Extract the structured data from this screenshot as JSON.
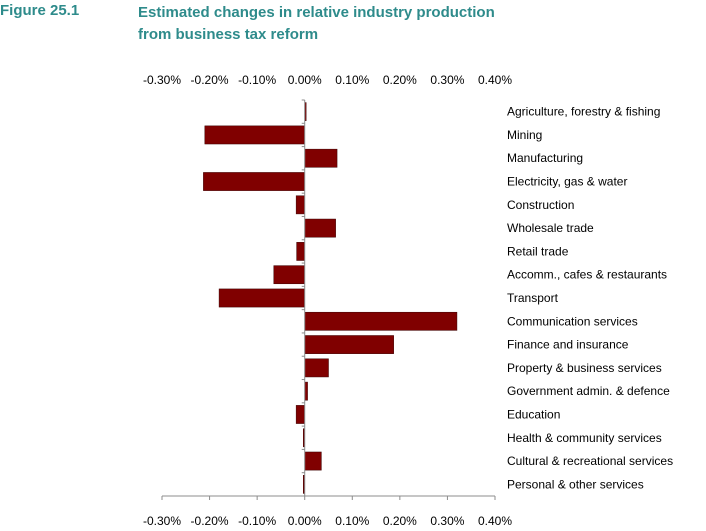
{
  "figure": {
    "label": "Figure 25.1",
    "title_line1": "Estimated changes in relative industry production",
    "title_line2": "from business tax reform"
  },
  "chart_data": {
    "type": "bar",
    "orientation": "horizontal",
    "categories": [
      "Agriculture, forestry & fishing",
      "Mining",
      "Manufacturing",
      "Electricity, gas & water",
      "Construction",
      "Wholesale trade",
      "Retail trade",
      "Accomm., cafes & restaurants",
      "Transport",
      "Communication services",
      "Finance and insurance",
      "Property & business services",
      "Government admin. & defence",
      "Education",
      "Health & community services",
      "Cultural & recreational services",
      "Personal & other services"
    ],
    "values": [
      0.003,
      -0.21,
      0.068,
      -0.213,
      -0.018,
      0.065,
      -0.017,
      -0.065,
      -0.18,
      0.32,
      0.187,
      0.05,
      0.006,
      -0.018,
      -0.003,
      0.035,
      -0.003
    ],
    "value_unit": "%",
    "xlim": [
      -0.3,
      0.4
    ],
    "ticks": [
      -0.3,
      -0.2,
      -0.1,
      0.0,
      0.1,
      0.2,
      0.3,
      0.4
    ],
    "tick_labels": [
      "-0.30%",
      "-0.20%",
      "-0.10%",
      "0.00%",
      "0.10%",
      "0.20%",
      "0.30%",
      "0.40%"
    ],
    "axis_labels_top": true,
    "axis_labels_bottom": true,
    "grid": false,
    "legend": "none",
    "bar_color": "#800000",
    "title": "Estimated changes in relative industry production from business tax reform",
    "xlabel": "",
    "ylabel": ""
  }
}
